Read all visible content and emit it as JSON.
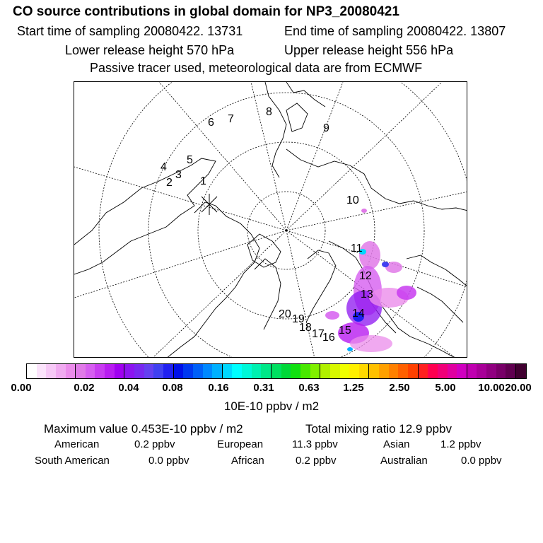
{
  "title": "CO  source contributions in global domain for NP3_20080421",
  "header": {
    "start_time": "Start time of sampling 20080422. 13731",
    "end_time": "End time of sampling 20080422. 13807",
    "lower_height": "Lower release height  570 hPa",
    "upper_height": "Upper release height  556 hPa",
    "tracer_note": "Passive tracer used, meteorological data are from ECMWF"
  },
  "map": {
    "trajectory_labels": [
      "1",
      "2",
      "3",
      "4",
      "5",
      "6",
      "7",
      "8",
      "9",
      "10",
      "11",
      "12",
      "13",
      "14",
      "15",
      "16",
      "17",
      "18",
      "19",
      "20"
    ]
  },
  "colorbar": {
    "ticks": [
      "0.00",
      "0.02",
      "0.04",
      "0.08",
      "0.16",
      "0.31",
      "0.63",
      "1.25",
      "2.50",
      "5.00",
      "10.00",
      "20.00"
    ],
    "colors": [
      "#ffffff",
      "#fbe3fb",
      "#f6c8f6",
      "#f0aaf0",
      "#eb8ceb",
      "#e07ae8",
      "#d65ef0",
      "#c83cf0",
      "#b81cf0",
      "#a000f0",
      "#8c14f0",
      "#7828f0",
      "#6440f0",
      "#4040f0",
      "#2020f0",
      "#0010e8",
      "#0038f0",
      "#0060f8",
      "#0088ff",
      "#00b0ff",
      "#00d8ff",
      "#00ffff",
      "#00f8d8",
      "#00f0b0",
      "#00e888",
      "#00e060",
      "#00d838",
      "#10e010",
      "#48e800",
      "#80f000",
      "#b0f000",
      "#d8f800",
      "#f0ff00",
      "#fff000",
      "#ffd800",
      "#ffc000",
      "#ffa000",
      "#ff8000",
      "#ff6000",
      "#ff4000",
      "#ff2020",
      "#ff0050",
      "#f00078",
      "#e000a0",
      "#d000c0",
      "#c000b0",
      "#a80098",
      "#900080",
      "#780068",
      "#600050",
      "#400030"
    ],
    "unit": "10E-10 ppbv / m2"
  },
  "stats": {
    "max_value": "Maximum value  0.453E-10 ppbv / m2",
    "total_ratio": "Total mixing ratio      12.9 ppbv"
  },
  "regions": [
    {
      "name": "American",
      "value": "0.2 ppbv"
    },
    {
      "name": "European",
      "value": "11.3 ppbv"
    },
    {
      "name": "Asian",
      "value": "1.2 ppbv"
    },
    {
      "name": "South American",
      "value": "0.0 ppbv"
    },
    {
      "name": "African",
      "value": "0.2 ppbv"
    },
    {
      "name": "Australian",
      "value": "0.0 ppbv"
    }
  ]
}
